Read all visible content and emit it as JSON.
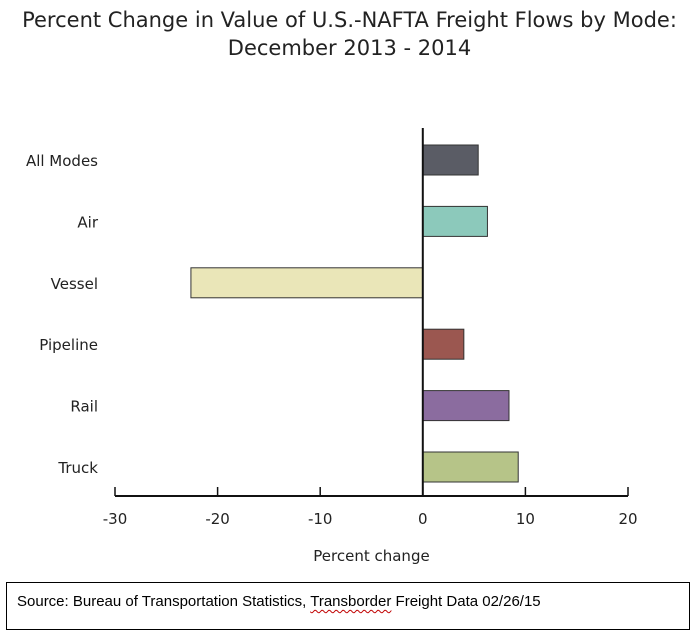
{
  "chart_data": {
    "type": "bar",
    "orientation": "horizontal",
    "title": "Percent Change in Value of U.S.-NAFTA Freight Flows by Mode:",
    "subtitle": "December 2013 - 2014",
    "xlabel": "Percent change",
    "ylabel": "",
    "xlim": [
      -30,
      20
    ],
    "xticks": [
      "-30",
      "-20",
      "-10",
      "0",
      "10",
      "20"
    ],
    "grid": false,
    "categories": [
      "All Modes",
      "Air",
      "Vessel",
      "Pipeline",
      "Rail",
      "Truck"
    ],
    "values": [
      5.4,
      6.3,
      -22.6,
      4.0,
      8.4,
      9.3
    ],
    "colors": [
      "#5a5c65",
      "#8cc9bb",
      "#eae6b8",
      "#9b5750",
      "#8b6c9f",
      "#b6c488"
    ]
  },
  "source": {
    "prefix": "Source: Bureau of Transportation Statistics, ",
    "underlined": "Transborder",
    "suffix": " Freight Data 02/26/15"
  }
}
